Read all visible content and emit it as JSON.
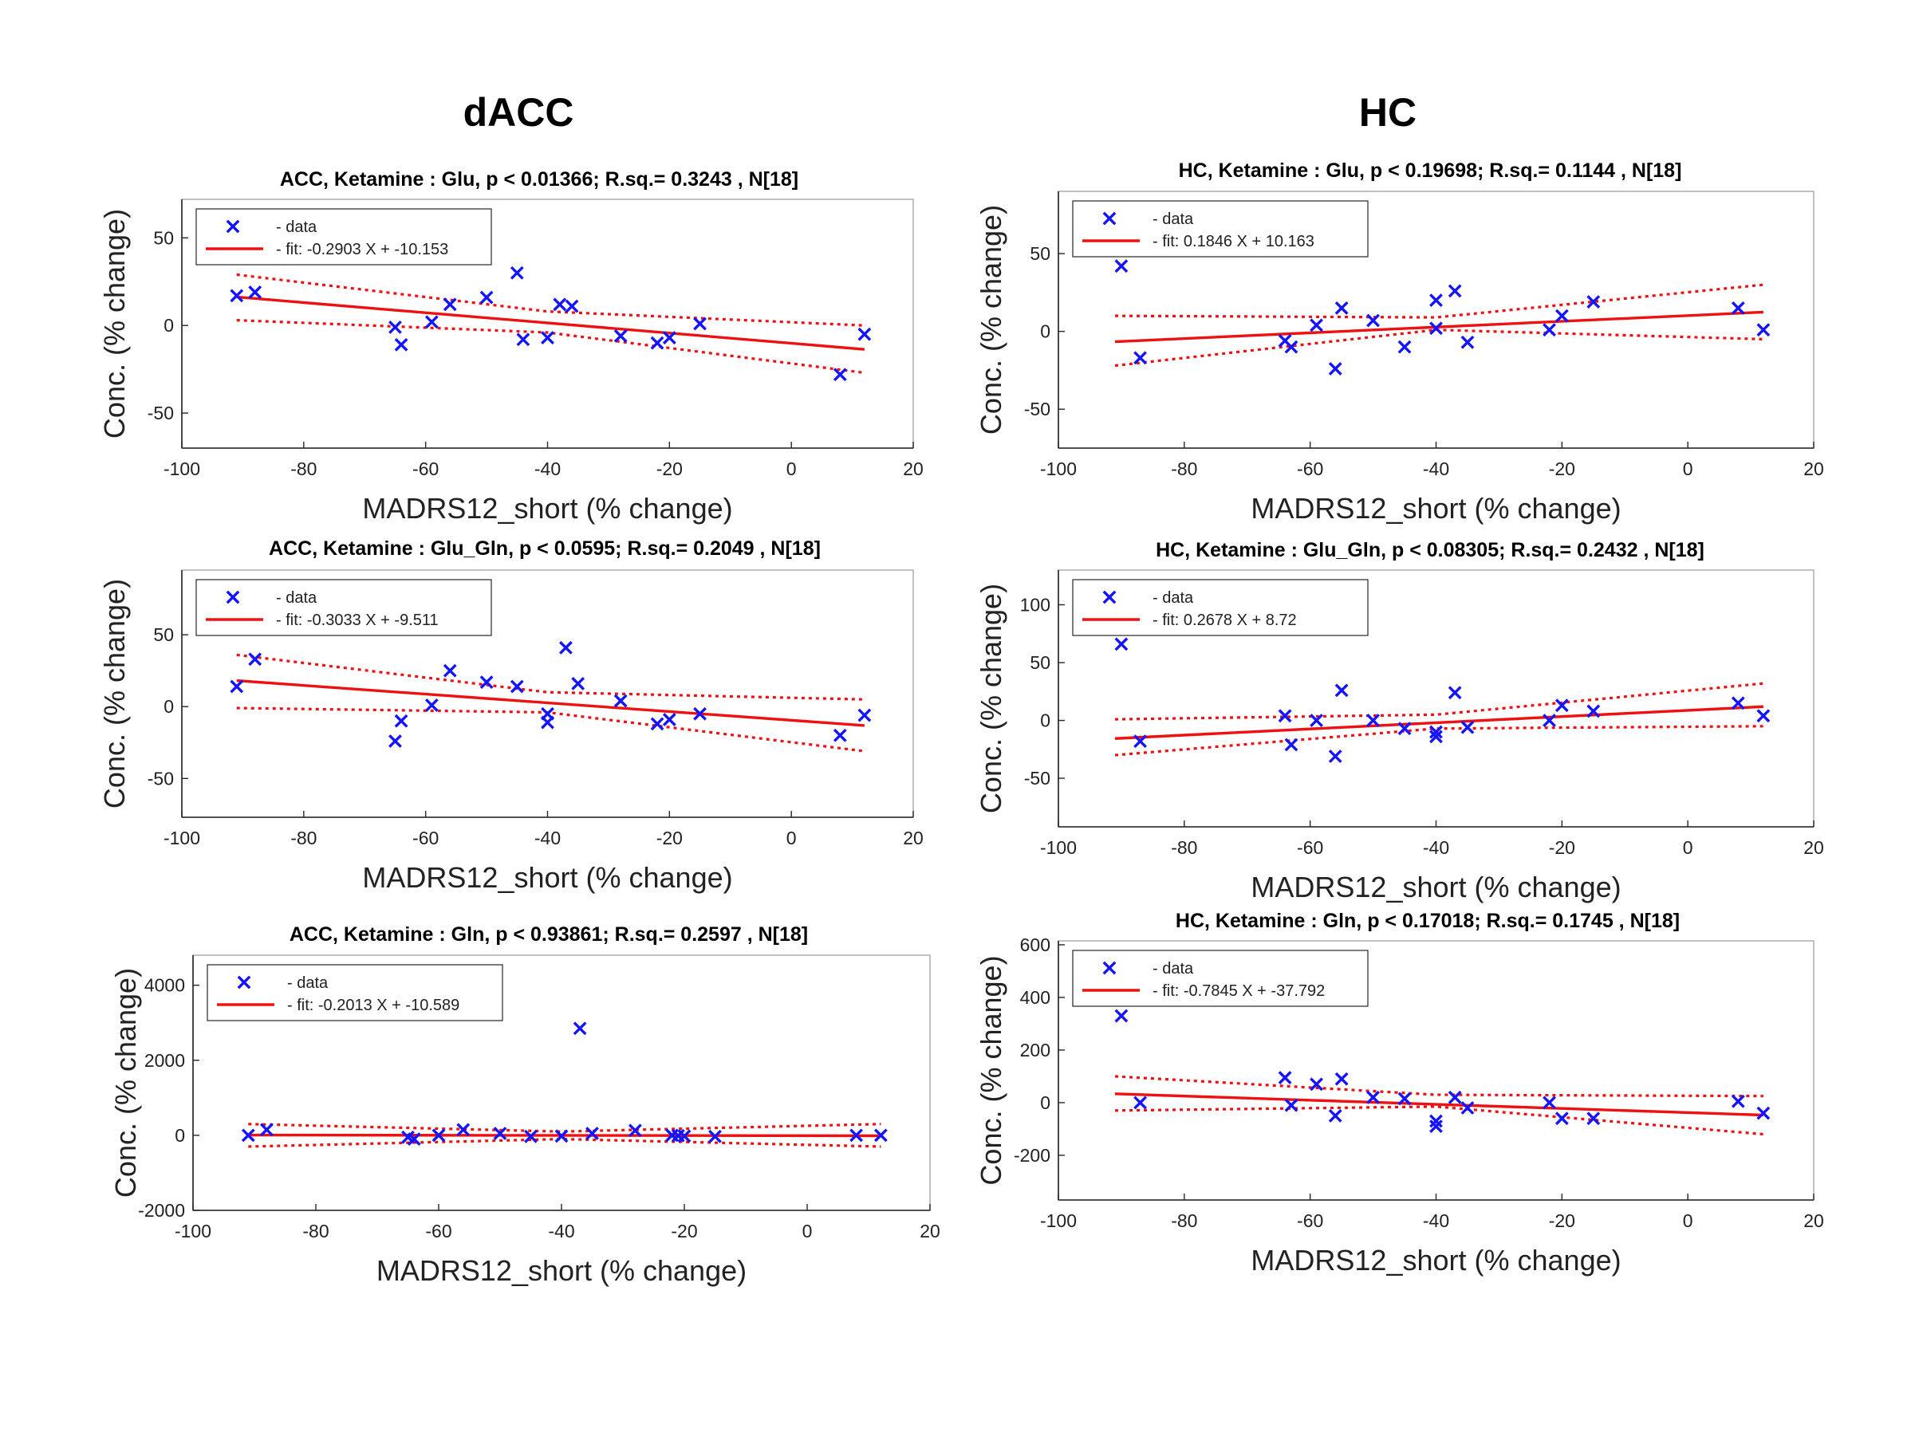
{
  "figure": {
    "column_titles": [
      "dACC",
      "HC"
    ]
  },
  "colors": {
    "data": "#1414ff",
    "fit": "#ee1111",
    "axis": "#262626"
  },
  "chart_data": [
    {
      "id": "acc-glu",
      "type": "scatter",
      "column": 0,
      "row": 0,
      "title": "ACC,  Ketamine : Glu, p < 0.01366; R.sq.= 0.3243 , N[18]",
      "xlabel": "MADRS12_short (% change)",
      "ylabel": "Conc. (% change)",
      "xlim": [
        -100,
        20
      ],
      "ylim": [
        -70,
        72
      ],
      "xticks": [
        -100,
        -80,
        -60,
        -40,
        -20,
        0,
        20
      ],
      "yticks": [
        -50,
        0,
        50
      ],
      "legend": {
        "data_label": "- data",
        "fit_label": "- fit: -0.2903 X + -10.153",
        "placement": "top-left"
      },
      "fit": {
        "slope": -0.2903,
        "intercept": -10.153,
        "xrange": [
          -91,
          12
        ]
      },
      "band": {
        "lower": [
          [
            -91,
            3
          ],
          [
            -40,
            -4
          ],
          [
            12,
            -27
          ]
        ],
        "upper": [
          [
            -91,
            29
          ],
          [
            -40,
            8
          ],
          [
            12,
            0
          ]
        ]
      },
      "x": [
        -91,
        -88,
        -65,
        -64,
        -59,
        -56,
        -50,
        -45,
        -44,
        -40,
        -38,
        -36,
        -28,
        -22,
        -20,
        -15,
        8,
        12
      ],
      "y": [
        17,
        19,
        -1,
        -11,
        2,
        12,
        16,
        30,
        -8,
        -7,
        12,
        11,
        -6,
        -10,
        -7,
        1,
        -28,
        -5
      ]
    },
    {
      "id": "acc-glu-gln",
      "type": "scatter",
      "column": 0,
      "row": 1,
      "title": "ACC,  Ketamine : Glu_Gln, p < 0.0595; R.sq.= 0.2049 , N[18]",
      "xlabel": "MADRS12_short (% change)",
      "ylabel": "Conc. (% change)",
      "xlim": [
        -100,
        20
      ],
      "ylim": [
        -77,
        95
      ],
      "xticks": [
        -100,
        -80,
        -60,
        -40,
        -20,
        0,
        20
      ],
      "yticks": [
        -50,
        0,
        50
      ],
      "legend": {
        "data_label": "- data",
        "fit_label": "- fit: -0.3033 X + -9.511",
        "placement": "top-left"
      },
      "fit": {
        "slope": -0.3033,
        "intercept": -9.511,
        "xrange": [
          -91,
          12
        ]
      },
      "band": {
        "lower": [
          [
            -91,
            -1
          ],
          [
            -40,
            -4
          ],
          [
            12,
            -31
          ]
        ],
        "upper": [
          [
            -91,
            36
          ],
          [
            -40,
            10
          ],
          [
            12,
            5
          ]
        ]
      },
      "x": [
        -91,
        -88,
        -65,
        -64,
        -59,
        -56,
        -50,
        -45,
        -40,
        -40,
        -37,
        -35,
        -28,
        -22,
        -20,
        -15,
        8,
        12
      ],
      "y": [
        14,
        33,
        -24,
        -10,
        1,
        25,
        17,
        14,
        -5,
        -11,
        41,
        16,
        4,
        -12,
        -9,
        -5,
        -20,
        -6
      ]
    },
    {
      "id": "acc-gln",
      "type": "scatter",
      "column": 0,
      "row": 2,
      "title": "ACC,  Ketamine : Gln, p < 0.93861; R.sq.= 0.2597 , N[18]",
      "xlabel": "MADRS12_short (% change)",
      "ylabel": "Conc. (% change)",
      "xlim": [
        -100,
        20
      ],
      "ylim": [
        -2000,
        4800
      ],
      "xticks": [
        -100,
        -80,
        -60,
        -40,
        -20,
        0,
        20
      ],
      "yticks": [
        -2000,
        0,
        2000,
        4000
      ],
      "legend": {
        "data_label": "- data",
        "fit_label": "- fit: -0.2013 X + -10.589",
        "placement": "top-left"
      },
      "fit": {
        "slope": -0.2013,
        "intercept": -10.589,
        "xrange": [
          -91,
          12
        ]
      },
      "band": {
        "lower": [
          [
            -91,
            -300
          ],
          [
            -40,
            -100
          ],
          [
            12,
            -300
          ]
        ],
        "upper": [
          [
            -91,
            300
          ],
          [
            -40,
            100
          ],
          [
            12,
            300
          ]
        ]
      },
      "x": [
        -91,
        -88,
        -65,
        -64,
        -60,
        -56,
        -50,
        -45,
        -40,
        -37,
        -35,
        -28,
        -22,
        -21,
        -20,
        -15,
        8,
        12
      ],
      "y": [
        0,
        150,
        -50,
        -100,
        0,
        150,
        50,
        -30,
        -20,
        2850,
        50,
        130,
        0,
        -10,
        -20,
        -30,
        0,
        0
      ]
    },
    {
      "id": "hc-glu",
      "type": "scatter",
      "column": 1,
      "row": 0,
      "title": "HC,  Ketamine : Glu, p < 0.19698; R.sq.= 0.1144 , N[18]",
      "xlabel": "MADRS12_short (% change)",
      "ylabel": "Conc. (% change)",
      "xlim": [
        -100,
        20
      ],
      "ylim": [
        -75,
        90
      ],
      "xticks": [
        -100,
        -80,
        -60,
        -40,
        -20,
        0,
        20
      ],
      "yticks": [
        -50,
        0,
        50
      ],
      "legend": {
        "data_label": "- data",
        "fit_label": "- fit: 0.1846 X + 10.163",
        "placement": "top-left"
      },
      "fit": {
        "slope": 0.1846,
        "intercept": 10.163,
        "xrange": [
          -91,
          12
        ]
      },
      "band": {
        "lower": [
          [
            -91,
            -22
          ],
          [
            -40,
            1
          ],
          [
            12,
            -5
          ]
        ],
        "upper": [
          [
            -91,
            10
          ],
          [
            -40,
            9
          ],
          [
            12,
            30
          ]
        ]
      },
      "x": [
        -90,
        -87,
        -64,
        -63,
        -59,
        -56,
        -55,
        -50,
        -45,
        -40,
        -40,
        -37,
        -35,
        -22,
        -20,
        -15,
        8,
        12
      ],
      "y": [
        42,
        -17,
        -6,
        -10,
        4,
        -24,
        15,
        7,
        -10,
        20,
        2,
        26,
        -7,
        1,
        10,
        19,
        15,
        1
      ]
    },
    {
      "id": "hc-glu-gln",
      "type": "scatter",
      "column": 1,
      "row": 1,
      "title": "HC,  Ketamine : Glu_Gln, p < 0.08305; R.sq.= 0.2432 , N[18]",
      "xlabel": "MADRS12_short (% change)",
      "ylabel": "Conc. (% change)",
      "xlim": [
        -100,
        20
      ],
      "ylim": [
        -92,
        130
      ],
      "xticks": [
        -100,
        -80,
        -60,
        -40,
        -20,
        0,
        20
      ],
      "yticks": [
        -50,
        0,
        50,
        100
      ],
      "legend": {
        "data_label": "- data",
        "fit_label": "- fit: 0.2678 X + 8.72",
        "placement": "top-left"
      },
      "fit": {
        "slope": 0.2678,
        "intercept": 8.72,
        "xrange": [
          -91,
          12
        ]
      },
      "band": {
        "lower": [
          [
            -91,
            -30
          ],
          [
            -40,
            -7
          ],
          [
            12,
            -5
          ]
        ],
        "upper": [
          [
            -91,
            1
          ],
          [
            -40,
            5
          ],
          [
            12,
            32
          ]
        ]
      },
      "x": [
        -90,
        -87,
        -64,
        -63,
        -59,
        -56,
        -55,
        -50,
        -45,
        -40,
        -40,
        -37,
        -35,
        -22,
        -20,
        -15,
        8,
        12
      ],
      "y": [
        66,
        -18,
        4,
        -21,
        0,
        -31,
        26,
        0,
        -7,
        -10,
        -14,
        24,
        -6,
        0,
        13,
        8,
        15,
        4
      ]
    },
    {
      "id": "hc-gln",
      "type": "scatter",
      "column": 1,
      "row": 2,
      "title": "HC,  Ketamine : Gln, p < 0.17018; R.sq.= 0.1745 , N[18]",
      "xlabel": "MADRS12_short (% change)",
      "ylabel": "Conc. (% change)",
      "xlim": [
        -100,
        20
      ],
      "ylim": [
        -370,
        615
      ],
      "xticks": [
        -100,
        -80,
        -60,
        -40,
        -20,
        0,
        20
      ],
      "yticks": [
        -200,
        0,
        200,
        400,
        600
      ],
      "legend": {
        "data_label": "- data",
        "fit_label": "- fit: -0.7845 X + -37.792",
        "placement": "top-left"
      },
      "fit": {
        "slope": -0.7845,
        "intercept": -37.792,
        "xrange": [
          -91,
          12
        ]
      },
      "band": {
        "lower": [
          [
            -91,
            -30
          ],
          [
            -40,
            -15
          ],
          [
            12,
            -120
          ]
        ],
        "upper": [
          [
            -91,
            100
          ],
          [
            -40,
            30
          ],
          [
            12,
            25
          ]
        ]
      },
      "x": [
        -90,
        -87,
        -64,
        -63,
        -59,
        -56,
        -55,
        -50,
        -45,
        -40,
        -40,
        -37,
        -35,
        -22,
        -20,
        -15,
        8,
        12
      ],
      "y": [
        330,
        0,
        95,
        -10,
        70,
        -50,
        90,
        20,
        15,
        -70,
        -90,
        20,
        -20,
        0,
        -60,
        -60,
        5,
        -40
      ]
    }
  ]
}
